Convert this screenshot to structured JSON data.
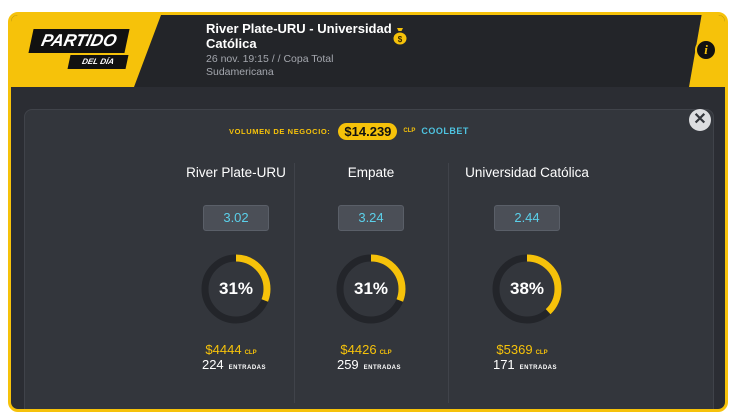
{
  "badge": {
    "title": "PARTIDO",
    "subtitle": "DEL DÍA"
  },
  "match": {
    "title": "River Plate-URU - Universidad Católica",
    "meta": "26 nov. 19:15 / / Copa Total Sudamericana"
  },
  "volume": {
    "label": "VOLUMEN DE NEGOCIO:",
    "value": "$14.239",
    "currency": "CLP",
    "brand": "COOLBET"
  },
  "outcomes": [
    {
      "name": "River Plate-URU",
      "odds": "3.02",
      "percent_label": "31%",
      "percent": 31,
      "amount": "$4444",
      "currency": "CLP",
      "entries": "224",
      "entries_label": "ENTRADAS"
    },
    {
      "name": "Empate",
      "odds": "3.24",
      "percent_label": "31%",
      "percent": 31,
      "amount": "$4426",
      "currency": "CLP",
      "entries": "259",
      "entries_label": "ENTRADAS"
    },
    {
      "name": "Universidad Católica",
      "odds": "2.44",
      "percent_label": "38%",
      "percent": 38,
      "amount": "$5369",
      "currency": "CLP",
      "entries": "171",
      "entries_label": "ENTRADAS"
    }
  ],
  "colors": {
    "accent": "#f6c20a",
    "ring_bg": "#23252a",
    "odds": "#5bd0ea"
  },
  "icons": {
    "info": "info-icon",
    "close": "close-icon",
    "money_bag": "money-bag-icon"
  },
  "glyphs": {
    "info": "i",
    "close": "✕"
  }
}
